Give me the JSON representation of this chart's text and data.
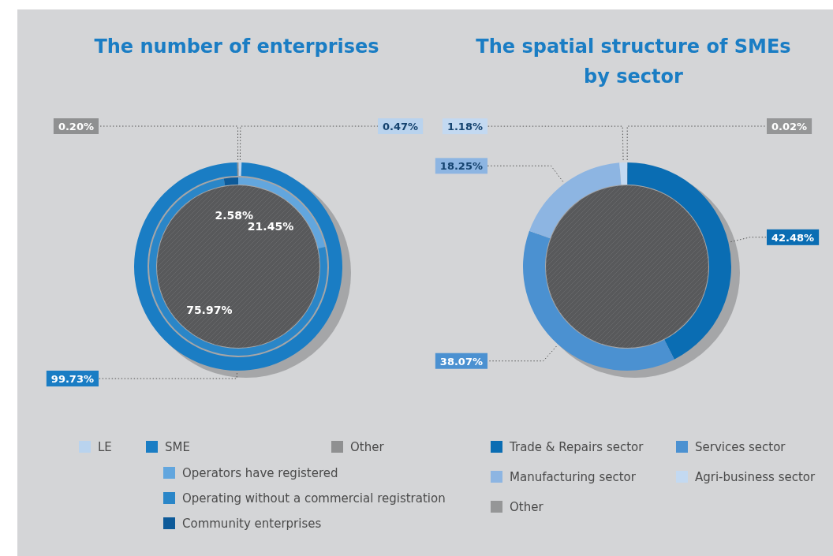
{
  "chart_data": [
    {
      "type": "donut",
      "title": "The number of enterprises",
      "categories": [
        "LE",
        "SME",
        "Other",
        "Operators have registered",
        "Operating without a commercial registration",
        "Community enterprises"
      ],
      "colors": [
        "#b9d3ee",
        "#1a7dc4",
        "#8f9091",
        "#62a6de",
        "#2a86c8",
        "#0d5a99"
      ],
      "series": [
        {
          "values": [
            null,
            null,
            null,
            21.45,
            75.97,
            2.58
          ],
          "value_labels": [
            null,
            null,
            null,
            "21.45%",
            "75.97%",
            "2.58%"
          ]
        },
        {
          "values": [
            0.47,
            99.73,
            0.2,
            null,
            null,
            null
          ],
          "value_labels": [
            "0.47%",
            "99.73%",
            "0.20%",
            null,
            null,
            null
          ]
        }
      ],
      "legend": "bottom"
    },
    {
      "type": "donut",
      "title": "The spatial structure of SMEs by sector",
      "categories": [
        "Trade & Repairs sector",
        "Services sector",
        "Manufacturing sector",
        "Agri-business sector",
        "Other"
      ],
      "colors": [
        "#0a6db3",
        "#4b91d1",
        "#8db5e2",
        "#c3d9f1",
        "#959697"
      ],
      "values": [
        42.48,
        38.07,
        18.25,
        1.18,
        0.02
      ],
      "value_labels": [
        "42.48%",
        "38.07%",
        "18.25%",
        "1.18%",
        "0.02%"
      ],
      "legend": "bottom"
    }
  ]
}
